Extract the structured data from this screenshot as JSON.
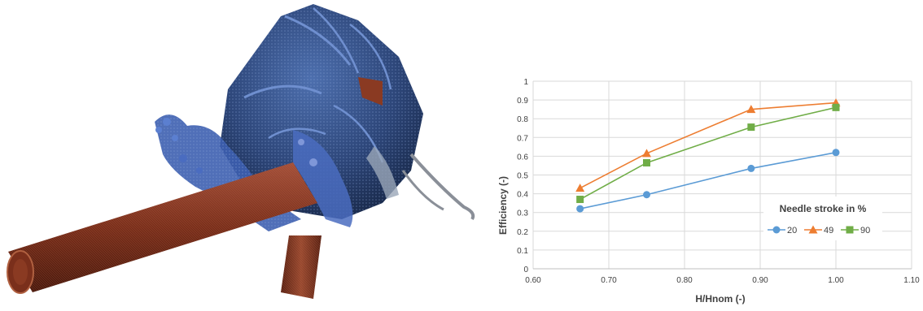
{
  "figure": {
    "render_description_left": "",
    "colors": {
      "blue": "#5b9bd5",
      "orange": "#ed7d31",
      "green": "#70ad47",
      "runner_dark": "#1e2d52",
      "runner_mid": "#3a5a9a",
      "pipe": "#8a3a22"
    }
  },
  "chart_data": {
    "type": "line",
    "title": "",
    "xlabel": "H/Hnom (-)",
    "ylabel": "Efficiency (-)",
    "xlim": [
      0.6,
      1.1
    ],
    "ylim": [
      0,
      1
    ],
    "x_ticks": [
      "0.60",
      "0.70",
      "0.80",
      "0.90",
      "1.00",
      "1.10"
    ],
    "y_ticks": [
      "0",
      "0.1",
      "0.2",
      "0.3",
      "0.4",
      "0.5",
      "0.6",
      "0.7",
      "0.8",
      "0.9",
      "1"
    ],
    "grid": true,
    "legend_title": "Needle stroke in %",
    "legend_position": "bottom-right",
    "series": [
      {
        "name": "20",
        "marker": "circle",
        "color": "#5b9bd5",
        "x": [
          0.662,
          0.75,
          0.888,
          1.0
        ],
        "y": [
          0.32,
          0.395,
          0.535,
          0.62
        ]
      },
      {
        "name": "49",
        "marker": "triangle",
        "color": "#ed7d31",
        "x": [
          0.662,
          0.75,
          0.888,
          1.0
        ],
        "y": [
          0.43,
          0.615,
          0.85,
          0.885
        ]
      },
      {
        "name": "90",
        "marker": "square",
        "color": "#70ad47",
        "x": [
          0.662,
          0.75,
          0.888,
          1.0
        ],
        "y": [
          0.37,
          0.565,
          0.755,
          0.86
        ]
      }
    ]
  }
}
